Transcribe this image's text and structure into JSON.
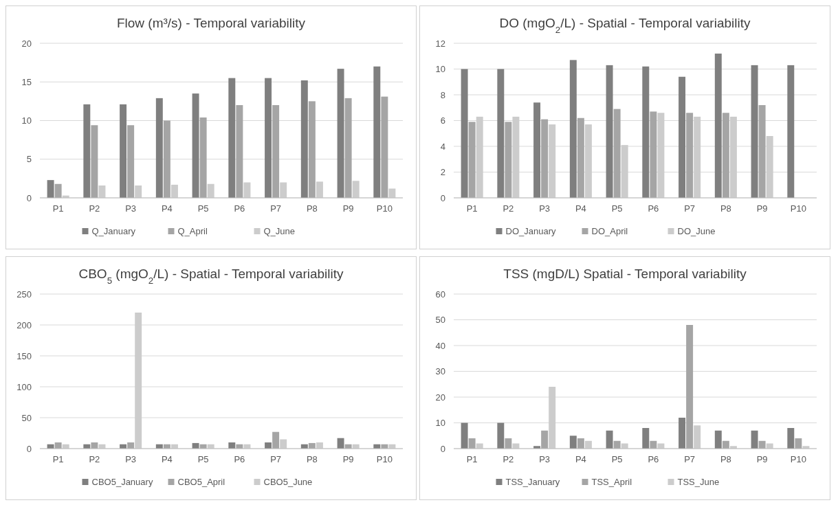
{
  "chart_data": [
    {
      "type": "bar",
      "title": "Flow (m³/s) - Temporal variability",
      "categories": [
        "P1",
        "P2",
        "P3",
        "P4",
        "P5",
        "P6",
        "P7",
        "P8",
        "P9",
        "P10"
      ],
      "series": [
        {
          "name": "Q_January",
          "color": "#7f7f7f",
          "values": [
            2.3,
            12.1,
            12.1,
            12.9,
            13.5,
            15.5,
            15.5,
            15.2,
            16.7,
            17.0
          ]
        },
        {
          "name": "Q_April",
          "color": "#a5a5a5",
          "values": [
            1.8,
            9.4,
            9.4,
            10.0,
            10.4,
            12.0,
            12.0,
            12.5,
            12.9,
            13.1
          ]
        },
        {
          "name": "Q_June",
          "color": "#cccccc",
          "values": [
            0.3,
            1.6,
            1.6,
            1.7,
            1.8,
            2.0,
            2.0,
            2.1,
            2.2,
            1.2
          ]
        }
      ],
      "ylim": [
        0,
        20
      ],
      "yticks": [
        0,
        5,
        10,
        15,
        20
      ],
      "grid": "y",
      "legend": "bottom"
    },
    {
      "type": "bar",
      "title": "DO (mgO$_{2}$/L) - Spatial - Temporal variability",
      "categories": [
        "P1",
        "P2",
        "P3",
        "P4",
        "P5",
        "P6",
        "P7",
        "P8",
        "P9",
        "P10"
      ],
      "series": [
        {
          "name": "DO_January",
          "color": "#7f7f7f",
          "values": [
            10.0,
            10.0,
            7.4,
            10.7,
            10.3,
            10.2,
            9.4,
            11.2,
            10.3,
            10.3
          ]
        },
        {
          "name": "DO_April",
          "color": "#a5a5a5",
          "values": [
            5.9,
            5.9,
            6.1,
            6.2,
            6.9,
            6.7,
            6.6,
            6.6,
            7.2,
            null
          ]
        },
        {
          "name": "DO_June",
          "color": "#cccccc",
          "values": [
            6.3,
            6.3,
            5.7,
            5.7,
            4.1,
            6.6,
            6.3,
            6.3,
            4.8,
            null
          ]
        }
      ],
      "ylim": [
        0,
        12
      ],
      "yticks": [
        0,
        2,
        4,
        6,
        8,
        10,
        12
      ],
      "grid": "y",
      "legend": "bottom"
    },
    {
      "type": "bar",
      "title": "CBO$_{5}$ (mgO$_{2}$/L) - Spatial - Temporal variability",
      "categories": [
        "P1",
        "P2",
        "P3",
        "P4",
        "P5",
        "P6",
        "P7",
        "P8",
        "P9",
        "P10"
      ],
      "series": [
        {
          "name": "CBO5_January",
          "color": "#7f7f7f",
          "values": [
            7,
            7,
            7,
            7,
            9,
            10,
            10,
            7,
            17,
            7
          ]
        },
        {
          "name": "CBO5_April",
          "color": "#a5a5a5",
          "values": [
            10,
            10,
            10,
            7,
            7,
            7,
            27,
            9,
            7,
            7
          ]
        },
        {
          "name": "CBO5_June",
          "color": "#cccccc",
          "values": [
            7,
            7,
            220,
            7,
            7,
            7,
            15,
            10,
            7,
            7
          ]
        }
      ],
      "ylim": [
        0,
        250
      ],
      "yticks": [
        0,
        50,
        100,
        150,
        200,
        250
      ],
      "grid": "y",
      "legend": "bottom"
    },
    {
      "type": "bar",
      "title": "TSS (mgD/L) Spatial - Temporal variability",
      "categories": [
        "P1",
        "P2",
        "P3",
        "P4",
        "P5",
        "P6",
        "P7",
        "P8",
        "P9",
        "P10"
      ],
      "series": [
        {
          "name": "TSS_January",
          "color": "#7f7f7f",
          "values": [
            10,
            10,
            1,
            5,
            7,
            8,
            12,
            7,
            7,
            8
          ]
        },
        {
          "name": "TSS_April",
          "color": "#a5a5a5",
          "values": [
            4,
            4,
            7,
            4,
            3,
            3,
            48,
            3,
            3,
            4
          ]
        },
        {
          "name": "TSS_June",
          "color": "#cccccc",
          "values": [
            2,
            2,
            24,
            3,
            2,
            2,
            9,
            1,
            2,
            1
          ]
        }
      ],
      "ylim": [
        0,
        60
      ],
      "yticks": [
        0,
        10,
        20,
        30,
        40,
        50,
        60
      ],
      "grid": "y",
      "legend": "bottom"
    }
  ]
}
